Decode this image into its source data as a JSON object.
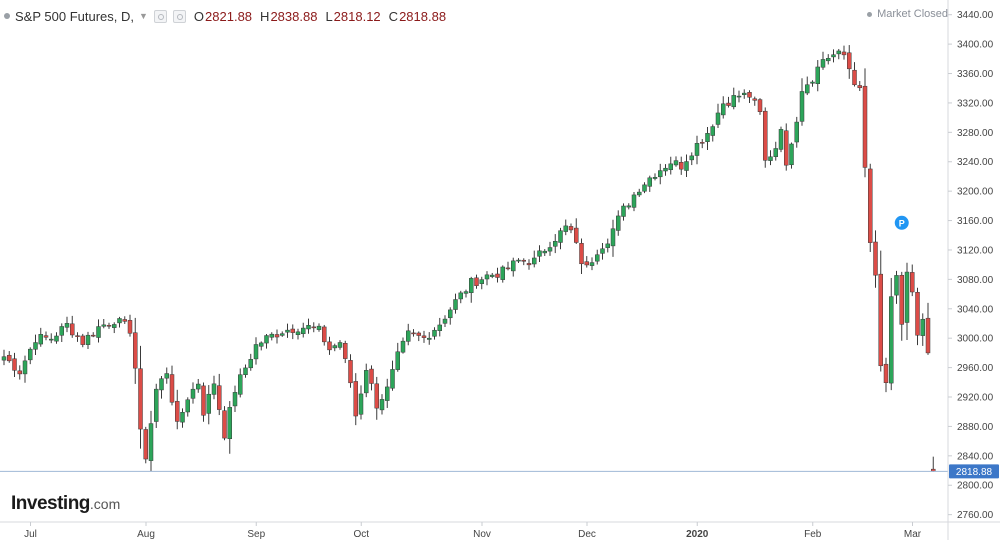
{
  "header": {
    "title": "S&P 500 Futures, D,",
    "open_label": "O",
    "open": "2821.88",
    "high_label": "H",
    "high": "2838.88",
    "low_label": "L",
    "low": "2818.12",
    "close_label": "C",
    "close": "2818.88"
  },
  "status": "Market Closed",
  "logo": {
    "main": "Investing",
    "suffix": ".com"
  },
  "colors": {
    "up": "#2da55a",
    "down": "#dc4c47",
    "price_line": "#9fb8d6",
    "price_tag": "#3c77c8",
    "marker": "#2196f3"
  },
  "chart_data": {
    "type": "candlestick",
    "yticks": [
      2760,
      2800,
      2840,
      2880,
      2920,
      2960,
      3000,
      3040,
      3080,
      3120,
      3160,
      3200,
      3240,
      3280,
      3320,
      3360,
      3400,
      3440
    ],
    "ylim": [
      2750,
      3460
    ],
    "ytick_decimals": 2,
    "xticks": [
      {
        "label": "Jul",
        "i": 2
      },
      {
        "label": "Aug",
        "i": 24
      },
      {
        "label": "Sep",
        "i": 45
      },
      {
        "label": "Oct",
        "i": 65
      },
      {
        "label": "Nov",
        "i": 88
      },
      {
        "label": "Dec",
        "i": 108
      },
      {
        "label": "2020",
        "i": 129
      },
      {
        "label": "Feb",
        "i": 151
      },
      {
        "label": "Mar",
        "i": 170
      }
    ],
    "bold_xtick": "2020",
    "last_price": "2818.88",
    "last_price_value": 2818.88,
    "marker": {
      "label": "P",
      "i": 171,
      "value": 3157
    },
    "keypoints": [
      [
        0,
        2975
      ],
      [
        3,
        2955
      ],
      [
        6,
        3000
      ],
      [
        9,
        3000
      ],
      [
        12,
        3018
      ],
      [
        15,
        2995
      ],
      [
        18,
        3015
      ],
      [
        21,
        3025
      ],
      [
        24,
        3012
      ],
      [
        25,
        2960
      ],
      [
        26,
        2870
      ],
      [
        27,
        2840
      ],
      [
        29,
        2930
      ],
      [
        31,
        2955
      ],
      [
        33,
        2880
      ],
      [
        35,
        2920
      ],
      [
        37,
        2940
      ],
      [
        38,
        2900
      ],
      [
        40,
        2940
      ],
      [
        42,
        2870
      ],
      [
        44,
        2930
      ],
      [
        46,
        2960
      ],
      [
        48,
        2990
      ],
      [
        50,
        3000
      ],
      [
        53,
        3010
      ],
      [
        56,
        3015
      ],
      [
        58,
        3015
      ],
      [
        60,
        3010
      ],
      [
        62,
        2985
      ],
      [
        64,
        2995
      ],
      [
        66,
        2940
      ],
      [
        67,
        2895
      ],
      [
        69,
        2960
      ],
      [
        71,
        2910
      ],
      [
        73,
        2930
      ],
      [
        75,
        2975
      ],
      [
        77,
        3005
      ],
      [
        80,
        3000
      ],
      [
        83,
        3020
      ],
      [
        86,
        3050
      ],
      [
        89,
        3075
      ],
      [
        92,
        3085
      ],
      [
        95,
        3090
      ],
      [
        98,
        3105
      ],
      [
        101,
        3105
      ],
      [
        104,
        3130
      ],
      [
        107,
        3150
      ],
      [
        108,
        3145
      ],
      [
        110,
        3105
      ],
      [
        111,
        3095
      ],
      [
        113,
        3120
      ],
      [
        115,
        3135
      ],
      [
        118,
        3175
      ],
      [
        121,
        3205
      ],
      [
        124,
        3225
      ],
      [
        127,
        3240
      ],
      [
        129,
        3235
      ],
      [
        131,
        3255
      ],
      [
        134,
        3280
      ],
      [
        137,
        3320
      ],
      [
        140,
        3330
      ],
      [
        142,
        3330
      ],
      [
        144,
        3305
      ],
      [
        145,
        3240
      ],
      [
        147,
        3260
      ],
      [
        148,
        3290
      ],
      [
        149,
        3230
      ],
      [
        150,
        3270
      ],
      [
        151,
        3300
      ],
      [
        152,
        3340
      ],
      [
        154,
        3355
      ],
      [
        156,
        3380
      ],
      [
        158,
        3385
      ],
      [
        160,
        3385
      ],
      [
        162,
        3350
      ],
      [
        163,
        3335
      ],
      [
        164,
        3230
      ],
      [
        165,
        3130
      ],
      [
        166,
        3080
      ],
      [
        167,
        2960
      ],
      [
        168,
        2940
      ],
      [
        169,
        3050
      ],
      [
        170,
        3080
      ],
      [
        171,
        3020
      ],
      [
        172,
        3090
      ],
      [
        173,
        3060
      ],
      [
        174,
        3000
      ],
      [
        175,
        3020
      ],
      [
        176,
        2980
      ]
    ],
    "last_candle": {
      "i": 177,
      "o": 2821.88,
      "h": 2838.88,
      "l": 2818.12,
      "c": 2818.88
    }
  }
}
